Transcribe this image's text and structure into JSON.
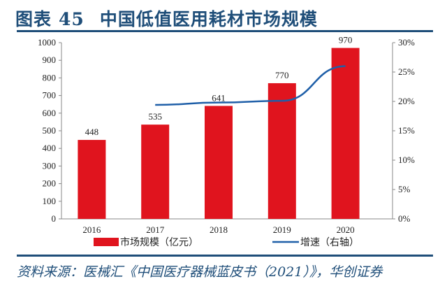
{
  "title": {
    "label": "图表",
    "number": "45",
    "text": "中国低值医用耗材市场规模"
  },
  "source": "资料来源：医械汇《中国医疗器械蓝皮书（2021）》，华创证券",
  "colors": {
    "bar": "#e0141e",
    "line": "#1f5fa8",
    "title": "#1f4e79"
  },
  "chart_data": {
    "type": "bar+line",
    "categories": [
      "2016",
      "2017",
      "2018",
      "2019",
      "2020"
    ],
    "series": [
      {
        "name": "市场规模（亿元）",
        "type": "bar",
        "axis": "left",
        "values": [
          448,
          535,
          641,
          770,
          970
        ],
        "data_labels": [
          "448",
          "535",
          "641",
          "770",
          "970"
        ]
      },
      {
        "name": "增速（右轴）",
        "type": "line",
        "axis": "right",
        "values": [
          null,
          19.4,
          19.8,
          20.1,
          26.0
        ]
      }
    ],
    "y_left": {
      "range": [
        0,
        1000
      ],
      "ticks": [
        "0",
        "100",
        "200",
        "300",
        "400",
        "500",
        "600",
        "700",
        "800",
        "900",
        "1000"
      ]
    },
    "y_right": {
      "range": [
        0,
        30
      ],
      "unit": "%",
      "ticks": [
        "0%",
        "5%",
        "10%",
        "15%",
        "20%",
        "25%",
        "30%"
      ]
    },
    "grid": false,
    "legend": "bottom"
  }
}
